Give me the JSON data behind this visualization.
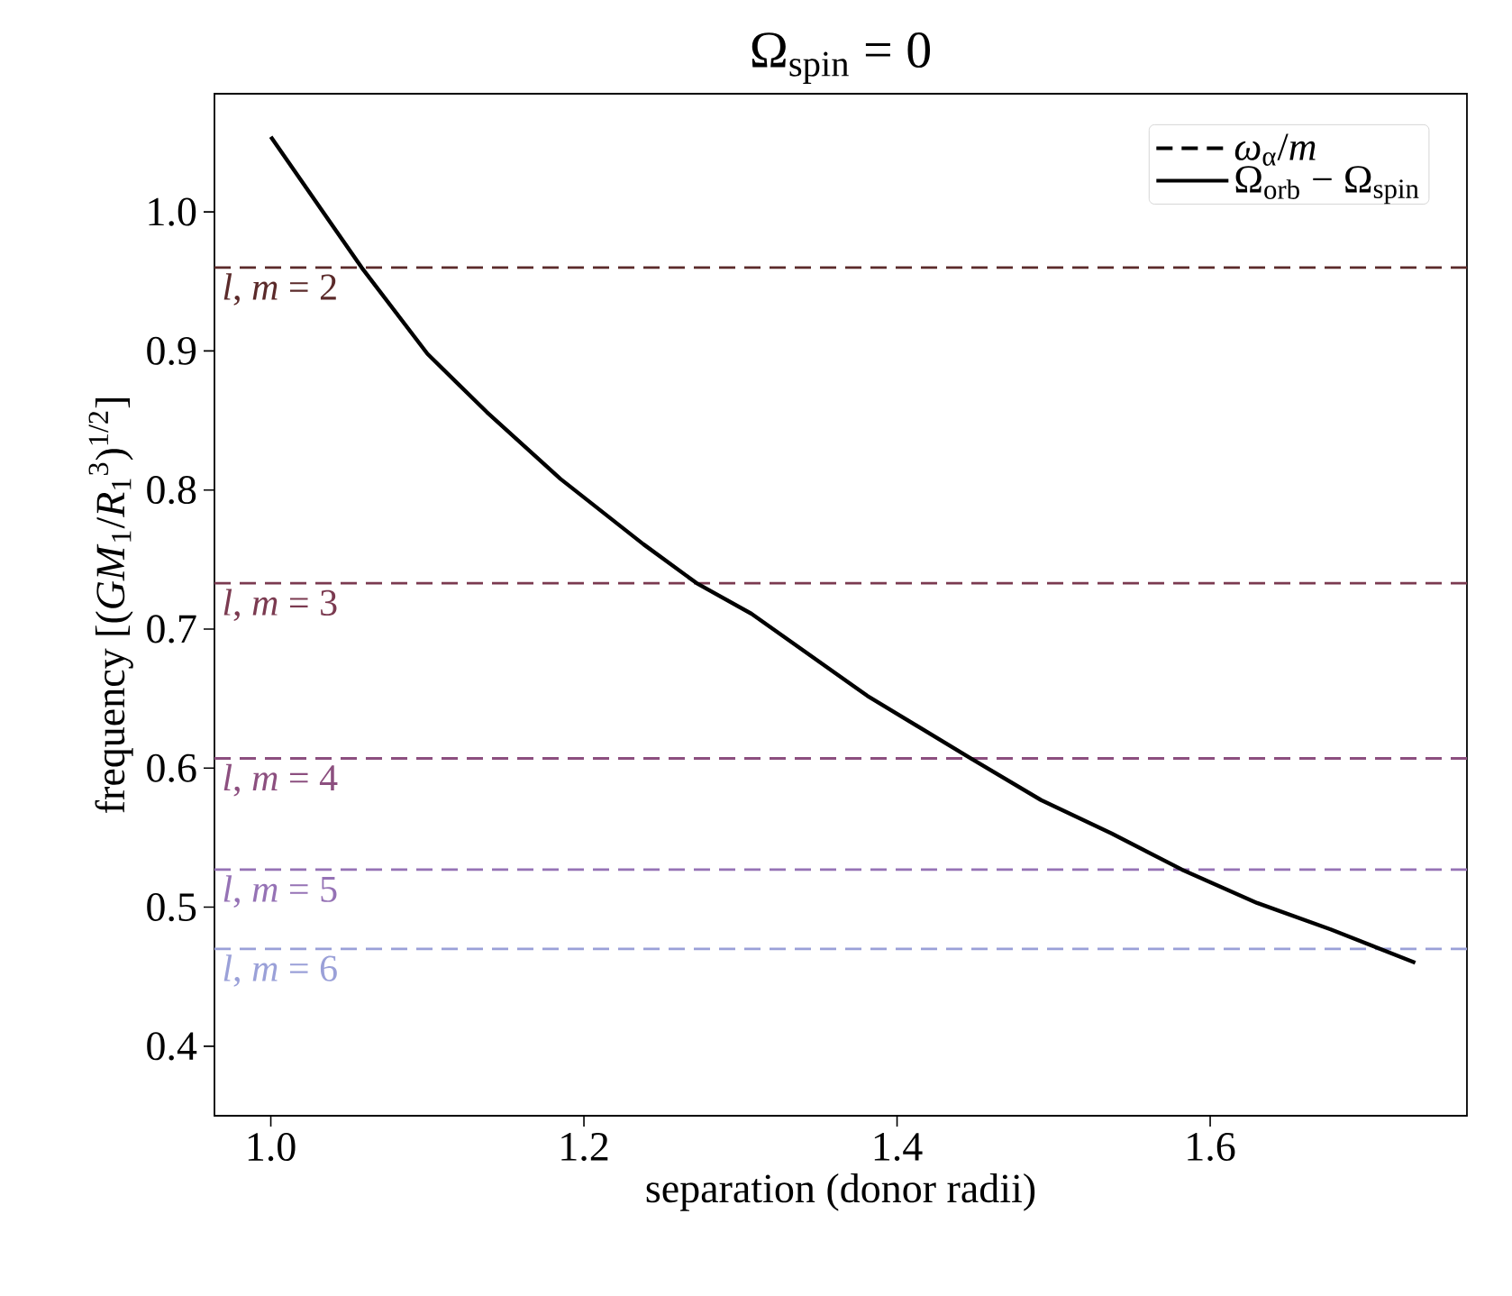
{
  "chart_data": {
    "type": "line",
    "title": "Ω$_{spin}$ = 0",
    "xlabel": "separation (donor radii)",
    "ylabel": "frequency  [(*GM*$_{1}$/*R*$_{1}$$^{3}$)$^{1/2}$]",
    "xlim": [
      0.964,
      1.764
    ],
    "ylim": [
      0.35,
      1.085
    ],
    "xticks": [
      {
        "value": 1.0,
        "label": "1.0"
      },
      1.2,
      1.4,
      1.6
    ],
    "yticks": [
      0.4,
      0.5,
      0.6,
      0.7,
      0.8,
      0.9,
      {
        "value": 1.0,
        "label": "1.0"
      }
    ],
    "legend": "top right",
    "marker": "none",
    "series": [
      {
        "name": "*ω*$_{α}$/*m*",
        "line_style": "dashed",
        "color": "#000000"
      },
      {
        "name": "Ω$_{orb}$ − Ω$_{spin}$",
        "line_style": "solid",
        "color": "#000000",
        "x": [
          1.0,
          1.058,
          1.1,
          1.138,
          1.185,
          1.238,
          1.272,
          1.307,
          1.381,
          1.447,
          1.492,
          1.537,
          1.582,
          1.63,
          1.677,
          1.731
        ],
        "values": [
          1.054,
          0.96,
          0.898,
          0.856,
          0.808,
          0.761,
          0.733,
          0.711,
          0.652,
          0.607,
          0.577,
          0.553,
          0.527,
          0.503,
          0.484,
          0.46
        ]
      }
    ],
    "ref_lines": [
      {
        "axis": "y",
        "value": 0.96,
        "color": "#5b2a2a",
        "line_style": "dashed"
      },
      {
        "axis": "y",
        "value": 0.733,
        "color": "#7b3a50",
        "line_style": "dashed"
      },
      {
        "axis": "y",
        "value": 0.607,
        "color": "#8c4f7f",
        "line_style": "dashed"
      },
      {
        "axis": "y",
        "value": 0.527,
        "color": "#9572b5",
        "line_style": "dashed"
      },
      {
        "axis": "y",
        "value": 0.47,
        "color": "#9aa0d8",
        "line_style": "dashed"
      }
    ],
    "annotations": [
      "*l*, *m* = 2",
      "*l*, *m* = 3",
      "*l*, *m* = 4",
      "*l*, *m* = 5",
      "*l*, *m* = 6"
    ]
  }
}
